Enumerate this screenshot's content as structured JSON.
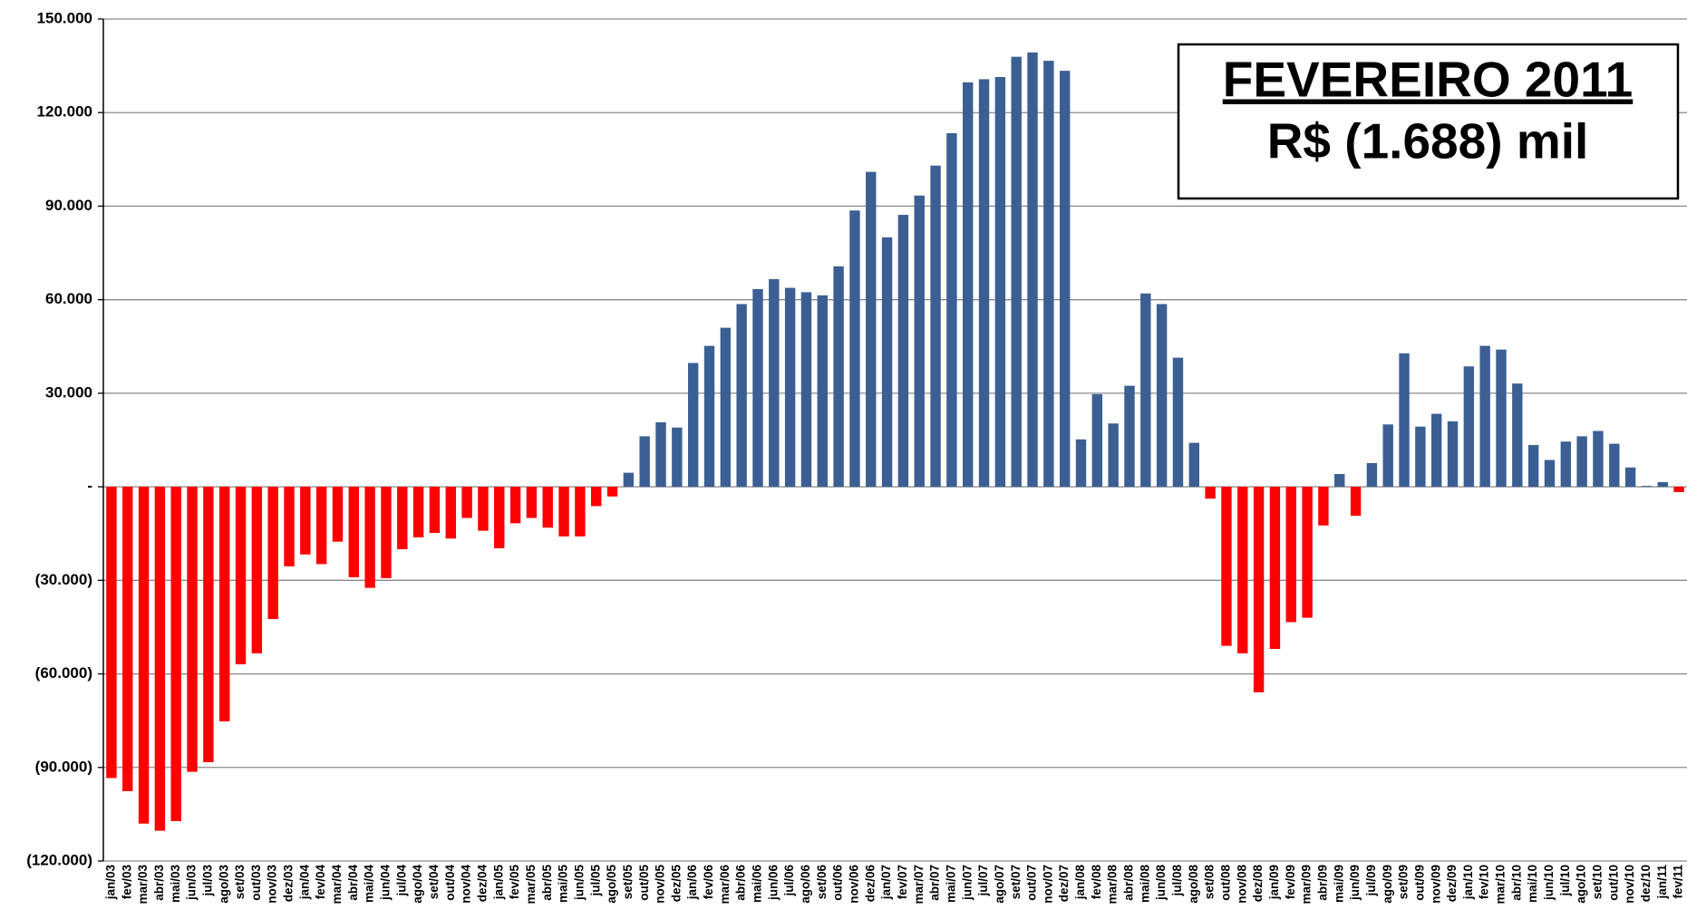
{
  "chart_data": {
    "type": "bar",
    "annotation": {
      "title": "FEVEREIRO 2011",
      "subtitle": "R$ (1.688) mil"
    },
    "categories": [
      "jan/03",
      "fev/03",
      "mar/03",
      "abr/03",
      "mai/03",
      "jun/03",
      "jul/03",
      "ago/03",
      "set/03",
      "out/03",
      "nov/03",
      "dez/03",
      "jan/04",
      "fev/04",
      "mar/04",
      "abr/04",
      "mai/04",
      "jun/04",
      "jul/04",
      "ago/04",
      "set/04",
      "out/04",
      "nov/04",
      "dez/04",
      "jan/05",
      "fev/05",
      "mar/05",
      "abr/05",
      "mai/05",
      "jun/05",
      "jul/05",
      "ago/05",
      "set/05",
      "out/05",
      "nov/05",
      "dez/05",
      "jan/06",
      "fev/06",
      "mar/06",
      "abr/06",
      "mai/06",
      "jun/06",
      "jul/06",
      "ago/06",
      "set/06",
      "out/06",
      "nov/06",
      "dez/06",
      "jan/07",
      "fev/07",
      "mar/07",
      "abr/07",
      "mai/07",
      "jun/07",
      "jul/07",
      "ago/07",
      "set/07",
      "out/07",
      "nov/07",
      "dez/07",
      "jan/08",
      "fev/08",
      "mar/08",
      "abr/08",
      "mai/08",
      "jun/08",
      "jul/08",
      "ago/08",
      "set/08",
      "out/08",
      "nov/08",
      "dez/08",
      "jan/09",
      "fev/09",
      "mar/09",
      "abr/09",
      "mai/09",
      "jun/09",
      "jul/09",
      "ago/09",
      "set/09",
      "out/09",
      "nov/09",
      "dez/09",
      "jan/10",
      "fev/10",
      "mar/10",
      "abr/10",
      "mai/10",
      "jun/10",
      "jul/10",
      "ago/10",
      "set/10",
      "out/10",
      "nov/10",
      "dez/10",
      "jan/11",
      "fev/11"
    ],
    "values": [
      -93400,
      -97600,
      -108000,
      -110300,
      -107200,
      -91400,
      -88300,
      -75200,
      -56900,
      -53400,
      -42400,
      -25500,
      -21700,
      -24800,
      -17600,
      -29000,
      -32400,
      -29300,
      -20000,
      -16200,
      -14800,
      -16600,
      -10000,
      -14100,
      -19700,
      -11700,
      -10000,
      -13100,
      -15900,
      -15900,
      -6200,
      -3100,
      4500,
      16200,
      20700,
      19000,
      39700,
      45200,
      51000,
      58600,
      63400,
      66600,
      63800,
      62400,
      61400,
      70700,
      88600,
      101000,
      80000,
      87200,
      93400,
      103000,
      113400,
      129700,
      130700,
      131400,
      137900,
      139300,
      136600,
      133400,
      15200,
      29700,
      20300,
      32400,
      62000,
      58600,
      41400,
      14100,
      -3800,
      -51000,
      -53400,
      -65900,
      -52000,
      -43400,
      -42000,
      -12400,
      4100,
      -9300,
      7600,
      20000,
      42800,
      19300,
      23400,
      21000,
      38600,
      45200,
      44000,
      33100,
      13400,
      8600,
      14500,
      16200,
      17900,
      13800,
      6200,
      300,
      1500,
      -1688
    ],
    "positive_color": "#3c5f93",
    "negative_color": "#ff0000",
    "ylim": [
      -120000,
      150000
    ],
    "yticks": [
      {
        "value": -120000,
        "label": "(120.000)"
      },
      {
        "value": -90000,
        "label": "(90.000)"
      },
      {
        "value": -60000,
        "label": "(60.000)"
      },
      {
        "value": -30000,
        "label": "(30.000)"
      },
      {
        "value": 0,
        "label": "-"
      },
      {
        "value": 30000,
        "label": "30.000"
      },
      {
        "value": 60000,
        "label": "60.000"
      },
      {
        "value": 90000,
        "label": "90.000"
      },
      {
        "value": 120000,
        "label": "120.000"
      },
      {
        "value": 150000,
        "label": "150.000"
      }
    ],
    "grid": true
  }
}
